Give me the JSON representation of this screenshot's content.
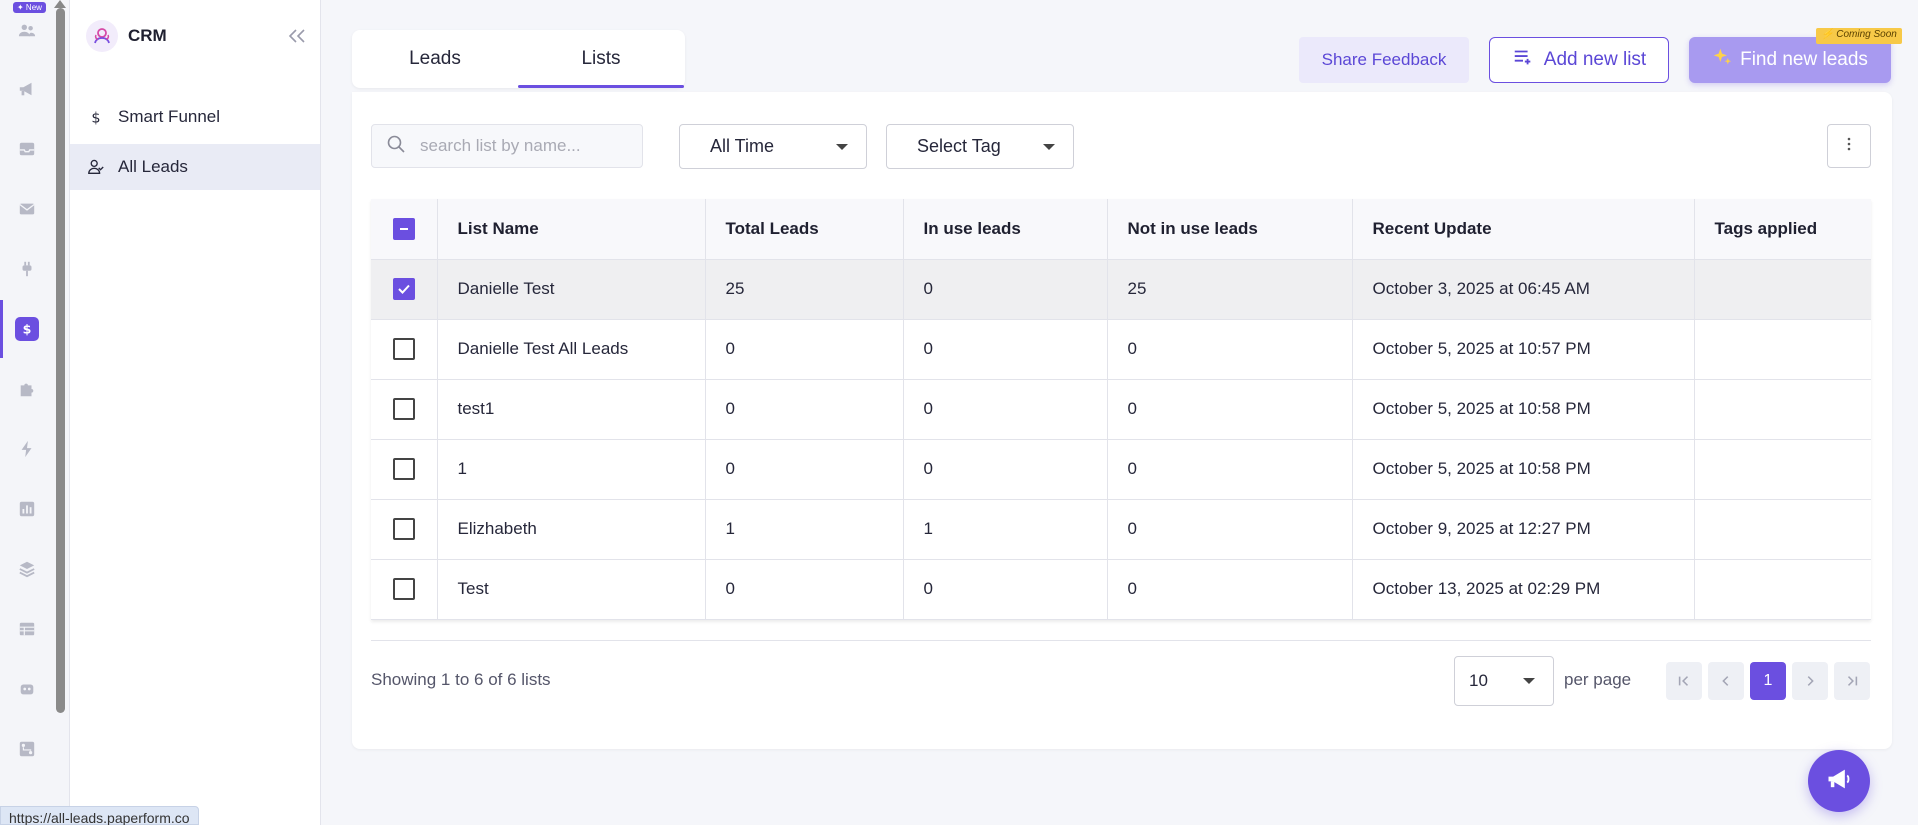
{
  "rail": {
    "new_badge": "✦ New",
    "items": [
      "users-icon",
      "megaphone-icon",
      "inbox-icon",
      "mail-icon",
      "plug-icon",
      "dollar-icon",
      "puzzle-icon",
      "bolt-icon",
      "chart-icon",
      "layers-icon",
      "table-icon",
      "bot-icon",
      "workflow-icon"
    ],
    "active_index": 5
  },
  "sidebar": {
    "brand": "CRM",
    "items": [
      {
        "label": "Smart Funnel",
        "icon": "dollar-icon"
      },
      {
        "label": "All Leads",
        "icon": "users-icon"
      }
    ],
    "active_index": 1
  },
  "status_url": "https://all-leads.paperform.co",
  "tabs": [
    {
      "label": "Leads"
    },
    {
      "label": "Lists"
    }
  ],
  "active_tab": 1,
  "actions": {
    "share_feedback": "Share Feedback",
    "add_new_list": "Add new list",
    "find_new_leads": "Find new leads",
    "coming_soon": "⚡ Coming Soon"
  },
  "filters": {
    "search_placeholder": "search list by name...",
    "time": "All Time",
    "tag": "Select Tag"
  },
  "table": {
    "headers": [
      "List Name",
      "Total Leads",
      "In use leads",
      "Not in use leads",
      "Recent Update",
      "Tags applied"
    ],
    "rows": [
      {
        "name": "Danielle Test",
        "total": "25",
        "in_use": "0",
        "not_in_use": "25",
        "updated": "October 3, 2025 at 06:45 AM",
        "tags": "",
        "checked": true
      },
      {
        "name": "Danielle Test All Leads",
        "total": "0",
        "in_use": "0",
        "not_in_use": "0",
        "updated": "October 5, 2025 at 10:57 PM",
        "tags": "",
        "checked": false
      },
      {
        "name": "test1",
        "total": "0",
        "in_use": "0",
        "not_in_use": "0",
        "updated": "October 5, 2025 at 10:58 PM",
        "tags": "",
        "checked": false
      },
      {
        "name": "1",
        "total": "0",
        "in_use": "0",
        "not_in_use": "0",
        "updated": "October 5, 2025 at 10:58 PM",
        "tags": "",
        "checked": false
      },
      {
        "name": "Elizhabeth",
        "total": "1",
        "in_use": "1",
        "not_in_use": "0",
        "updated": "October 9, 2025 at 12:27 PM",
        "tags": "",
        "checked": false
      },
      {
        "name": "Test",
        "total": "0",
        "in_use": "0",
        "not_in_use": "0",
        "updated": "October 13, 2025 at 02:29 PM",
        "tags": "",
        "checked": false
      }
    ]
  },
  "footer": {
    "showing": "Showing 1 to 6 of 6 lists",
    "per_page_value": "10",
    "per_page_label": "per page",
    "current_page": "1"
  },
  "colors": {
    "accent": "#6b4fe0",
    "accent_light": "#a89af0"
  }
}
